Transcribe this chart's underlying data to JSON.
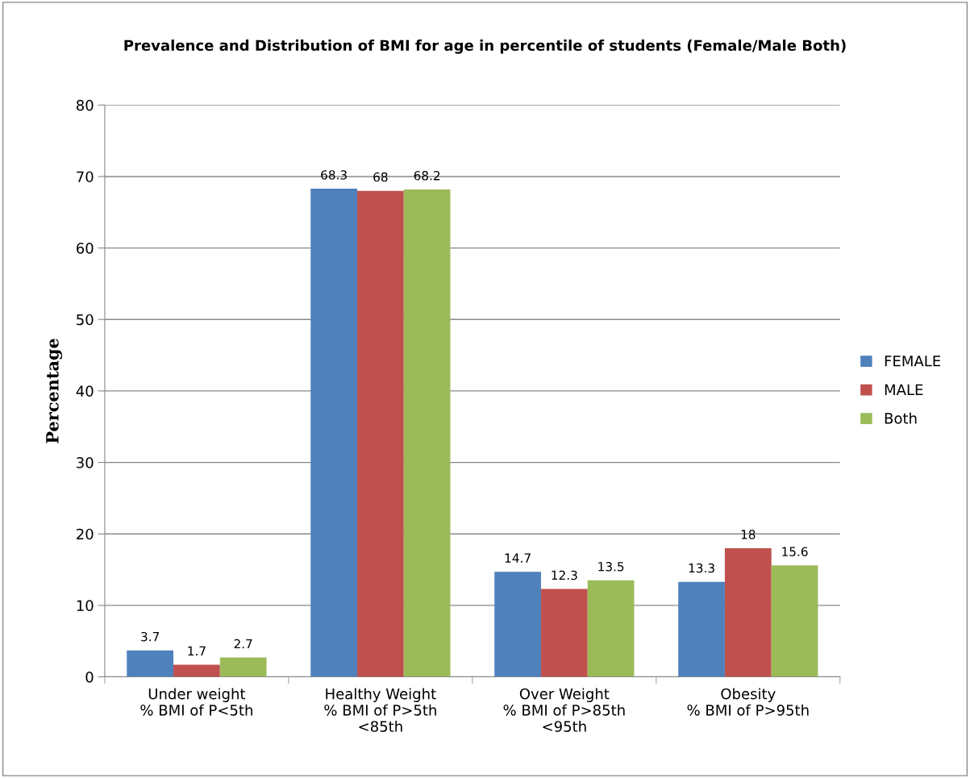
{
  "chart_data": {
    "type": "bar",
    "title": "Prevalence and Distribution of BMI for age in percentile of students (Female/Male Both)",
    "ylabel": "Percentage",
    "categories": [
      "Under weight\n% BMI of P<5th",
      "Healthy Weight\n% BMI of P>5th\n<85th",
      "Over Weight\n% BMI of P>85th\n<95th",
      "Obesity\n% BMI of P>95th"
    ],
    "series": [
      {
        "name": "FEMALE",
        "color": "#4f81bd",
        "values": [
          3.7,
          68.3,
          14.7,
          13.3
        ]
      },
      {
        "name": "MALE",
        "color": "#c0504d",
        "values": [
          1.7,
          68,
          12.3,
          18
        ]
      },
      {
        "name": "Both",
        "color": "#9bbb59",
        "values": [
          2.7,
          68.2,
          13.5,
          15.6
        ]
      }
    ],
    "ylim": [
      0,
      80
    ],
    "yticks": [
      0,
      10,
      20,
      30,
      40,
      50,
      60,
      70,
      80
    ],
    "grid": "y",
    "legend": "right",
    "data_labels": true
  }
}
